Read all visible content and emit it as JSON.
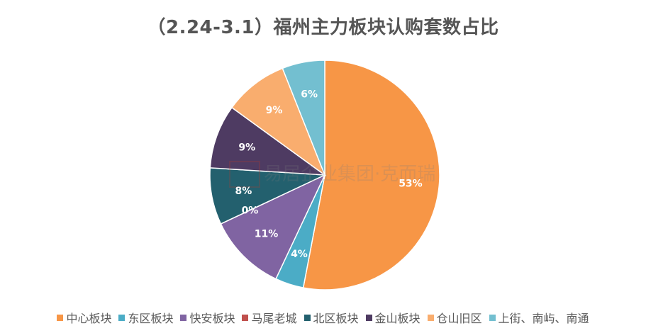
{
  "chart_data": {
    "type": "pie",
    "title": "（2.24-3.1）福州主力板块认购套数占比",
    "labels": [
      "中心板块",
      "东区板块",
      "快安板块",
      "马尾老城",
      "北区板块",
      "金山板块",
      "仓山旧区",
      "上街、南屿、南通"
    ],
    "values": [
      53,
      4,
      11,
      0,
      8,
      9,
      9,
      6
    ],
    "data_labels": [
      "53%",
      "4%",
      "11%",
      "0%",
      "8%",
      "9%",
      "9%",
      "6%"
    ],
    "colors": [
      "#F79646",
      "#4BACC6",
      "#8064A2",
      "#C0504D",
      "#23606E",
      "#4E3B62",
      "#F9AD6E",
      "#73BFD0"
    ],
    "legend_position": "bottom"
  },
  "watermark": "易居企业集团·克而瑞"
}
